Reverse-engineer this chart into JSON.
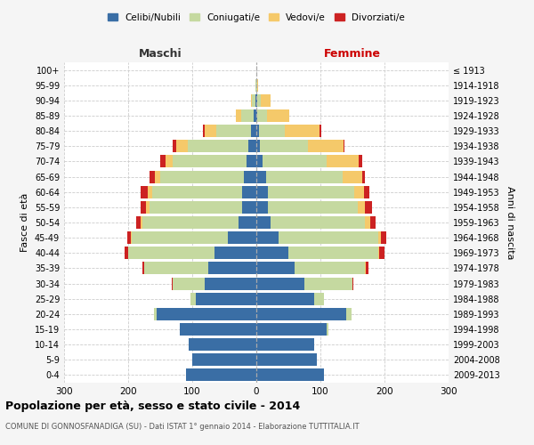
{
  "age_groups": [
    "0-4",
    "5-9",
    "10-14",
    "15-19",
    "20-24",
    "25-29",
    "30-34",
    "35-39",
    "40-44",
    "45-49",
    "50-54",
    "55-59",
    "60-64",
    "65-69",
    "70-74",
    "75-79",
    "80-84",
    "85-89",
    "90-94",
    "95-99",
    "100+"
  ],
  "birth_years": [
    "2009-2013",
    "2004-2008",
    "1999-2003",
    "1994-1998",
    "1989-1993",
    "1984-1988",
    "1979-1983",
    "1974-1978",
    "1969-1973",
    "1964-1968",
    "1959-1963",
    "1954-1958",
    "1949-1953",
    "1944-1948",
    "1939-1943",
    "1934-1938",
    "1929-1933",
    "1924-1928",
    "1919-1923",
    "1914-1918",
    "≤ 1913"
  ],
  "male": {
    "celibi": [
      110,
      100,
      105,
      120,
      155,
      95,
      80,
      75,
      65,
      45,
      28,
      22,
      22,
      20,
      15,
      12,
      8,
      4,
      2,
      0,
      0
    ],
    "coniugati": [
      0,
      0,
      0,
      0,
      5,
      8,
      50,
      100,
      135,
      150,
      150,
      145,
      140,
      130,
      115,
      95,
      55,
      20,
      5,
      1,
      0
    ],
    "vedovi": [
      0,
      0,
      0,
      0,
      0,
      0,
      0,
      0,
      0,
      1,
      2,
      5,
      8,
      8,
      12,
      18,
      18,
      8,
      2,
      0,
      0
    ],
    "divorziati": [
      0,
      0,
      0,
      0,
      0,
      0,
      2,
      3,
      5,
      5,
      8,
      8,
      10,
      8,
      8,
      5,
      2,
      0,
      0,
      0,
      0
    ]
  },
  "female": {
    "nubili": [
      105,
      95,
      90,
      110,
      140,
      90,
      75,
      60,
      50,
      35,
      22,
      18,
      18,
      15,
      10,
      6,
      4,
      2,
      2,
      0,
      0
    ],
    "coniugate": [
      0,
      0,
      0,
      2,
      8,
      15,
      75,
      110,
      140,
      155,
      148,
      140,
      135,
      120,
      100,
      75,
      40,
      15,
      5,
      1,
      0
    ],
    "vedove": [
      0,
      0,
      0,
      0,
      0,
      0,
      0,
      1,
      2,
      5,
      8,
      12,
      15,
      30,
      50,
      55,
      55,
      35,
      15,
      2,
      0
    ],
    "divorziate": [
      0,
      0,
      0,
      0,
      0,
      0,
      2,
      4,
      8,
      8,
      8,
      10,
      8,
      5,
      5,
      2,
      2,
      0,
      0,
      0,
      0
    ]
  },
  "colors": {
    "celibi": "#3a6ea5",
    "coniugati": "#c5d9a0",
    "vedovi": "#f5c96a",
    "divorziati": "#cc2222"
  },
  "title": "Popolazione per età, sesso e stato civile - 2014",
  "subtitle": "COMUNE DI GONNOSFANADIGA (SU) - Dati ISTAT 1° gennaio 2014 - Elaborazione TUTTITALIA.IT",
  "xlabel_left": "Maschi",
  "xlabel_right": "Femmine",
  "ylabel_left": "Fasce di età",
  "ylabel_right": "Anni di nascita",
  "xlim": 300,
  "bg_color": "#f5f5f5",
  "plot_bg": "#ffffff",
  "legend_labels": [
    "Celibi/Nubili",
    "Coniugati/e",
    "Vedovi/e",
    "Divorziati/e"
  ]
}
